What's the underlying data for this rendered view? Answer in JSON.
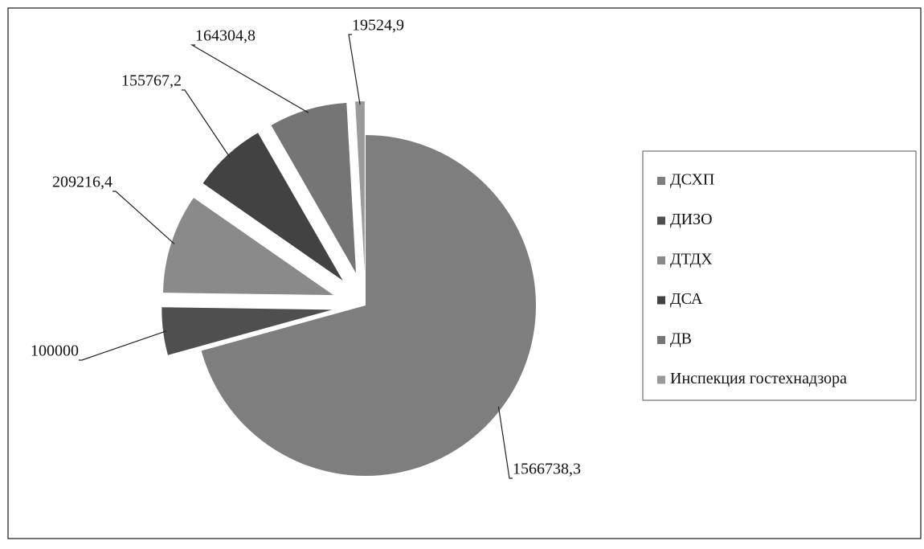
{
  "chart_data": {
    "type": "pie",
    "categories": [
      "ДСХП",
      "ДИЗО",
      "ДТДХ",
      "ДСА",
      "ДВ",
      "Инспекция гостехнадзора"
    ],
    "values": [
      1566738.3,
      100000,
      209216.4,
      155767.2,
      164304.8,
      19524.9
    ],
    "value_labels": [
      "1566738,3",
      "100000",
      "209216,4",
      "155767,2",
      "164304,8",
      "19524,9"
    ],
    "colors": [
      "#7e7e7e",
      "#4f4f4f",
      "#8a8a8a",
      "#424242",
      "#757575",
      "#9a9a9a"
    ],
    "legend": "right"
  }
}
